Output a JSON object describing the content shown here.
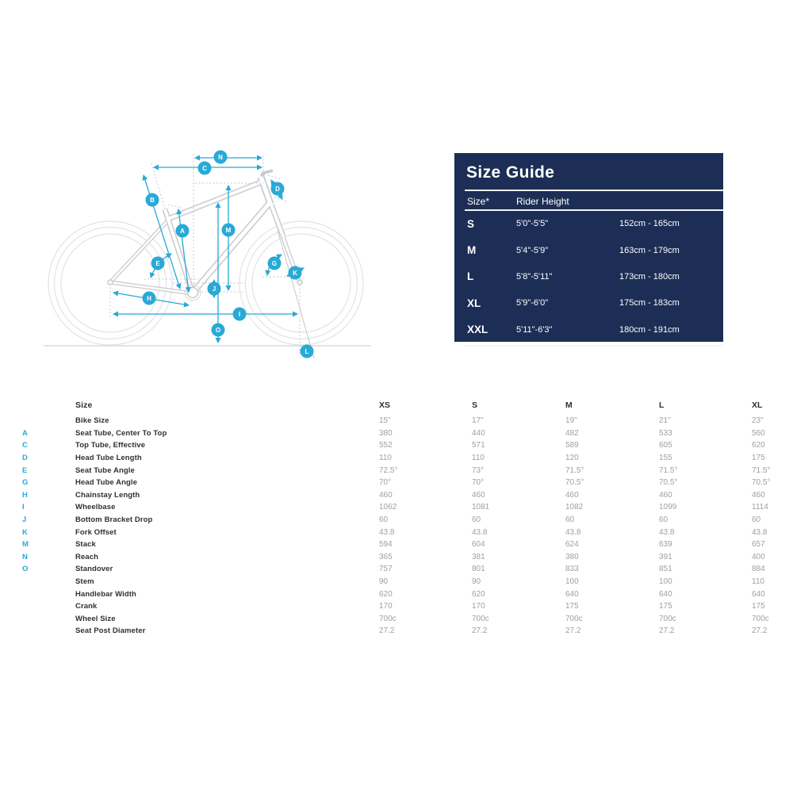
{
  "size_guide": {
    "title": "Size Guide",
    "col_size": "Size*",
    "col_height": "Rider Height",
    "rows": [
      {
        "size": "S",
        "height_ft": "5'0\"-5'5\"",
        "height_cm": "152cm - 165cm"
      },
      {
        "size": "M",
        "height_ft": "5'4\"-5'9\"",
        "height_cm": "163cm - 179cm"
      },
      {
        "size": "L",
        "height_ft": "5'8\"-5'11\"",
        "height_cm": "173cm - 180cm"
      },
      {
        "size": "XL",
        "height_ft": "5'9\"-6'0\"",
        "height_cm": "175cm - 183cm"
      },
      {
        "size": "XXL",
        "height_ft": "5'11\"-6'3\"",
        "height_cm": "180cm - 191cm"
      }
    ]
  },
  "geometry_table": {
    "size_label": "Size",
    "columns": [
      "XS",
      "S",
      "M",
      "L",
      "XL"
    ],
    "rows": [
      {
        "letter": "",
        "label": "Bike Size",
        "values": [
          "15\"",
          "17\"",
          "19\"",
          "21\"",
          "23\""
        ]
      },
      {
        "letter": "A",
        "label": "Seat Tube, Center To Top",
        "values": [
          "380",
          "440",
          "482",
          "533",
          "560"
        ]
      },
      {
        "letter": "C",
        "label": "Top Tube, Effective",
        "values": [
          "552",
          "571",
          "589",
          "605",
          "620"
        ]
      },
      {
        "letter": "D",
        "label": "Head Tube Length",
        "values": [
          "110",
          "110",
          "120",
          "155",
          "175"
        ]
      },
      {
        "letter": "E",
        "label": "Seat Tube Angle",
        "values": [
          "72.5°",
          "73°",
          "71.5°",
          "71.5°",
          "71.5°"
        ]
      },
      {
        "letter": "G",
        "label": "Head Tube Angle",
        "values": [
          "70°",
          "70°",
          "70.5°",
          "70.5°",
          "70.5°"
        ]
      },
      {
        "letter": "H",
        "label": "Chainstay Length",
        "values": [
          "460",
          "460",
          "460",
          "460",
          "460"
        ]
      },
      {
        "letter": "I",
        "label": "Wheelbase",
        "values": [
          "1062",
          "1081",
          "1082",
          "1099",
          "1114"
        ]
      },
      {
        "letter": "J",
        "label": "Bottom Bracket Drop",
        "values": [
          "60",
          "60",
          "60",
          "60",
          "60"
        ]
      },
      {
        "letter": "K",
        "label": "Fork Offset",
        "values": [
          "43.8",
          "43.8",
          "43.8",
          "43.8",
          "43.8"
        ]
      },
      {
        "letter": "M",
        "label": "Stack",
        "values": [
          "594",
          "604",
          "624",
          "639",
          "657"
        ]
      },
      {
        "letter": "N",
        "label": "Reach",
        "values": [
          "365",
          "381",
          "380",
          "391",
          "400"
        ]
      },
      {
        "letter": "O",
        "label": "Standover",
        "values": [
          "757",
          "801",
          "833",
          "851",
          "884"
        ]
      },
      {
        "letter": "",
        "label": "Stem",
        "values": [
          "90",
          "90",
          "100",
          "100",
          "110"
        ]
      },
      {
        "letter": "",
        "label": "Handlebar Width",
        "values": [
          "620",
          "620",
          "640",
          "640",
          "640"
        ]
      },
      {
        "letter": "",
        "label": "Crank",
        "values": [
          "170",
          "170",
          "175",
          "175",
          "175"
        ]
      },
      {
        "letter": "",
        "label": "Wheel Size",
        "values": [
          "700c",
          "700c",
          "700c",
          "700c",
          "700c"
        ]
      },
      {
        "letter": "",
        "label": "Seat Post Diameter",
        "values": [
          "27.2",
          "27.2",
          "27.2",
          "27.2",
          "27.2"
        ]
      }
    ]
  },
  "diagram": {
    "letters": [
      "A",
      "B",
      "C",
      "D",
      "E",
      "G",
      "H",
      "I",
      "J",
      "K",
      "L",
      "M",
      "N",
      "O"
    ]
  },
  "colors": {
    "accent": "#29a9d6",
    "panel_background": "#1c2e55",
    "label_text": "#303030",
    "value_text": "#9f9f9f"
  }
}
